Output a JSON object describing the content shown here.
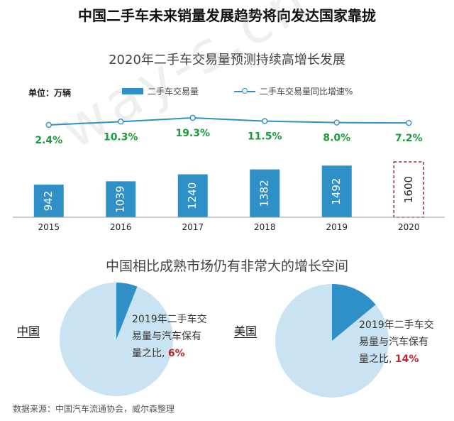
{
  "title": "中国二手车未来销量发展趋势将向发达国家靠拢",
  "watermark": "way-s.cn",
  "chart_data": [
    {
      "type": "bar",
      "title": "2020年二手车交易量预测持续高增长发展",
      "unit_label": "单位：万辆",
      "categories": [
        "2015",
        "2016",
        "2017",
        "2018",
        "2019",
        "2020"
      ],
      "series": [
        {
          "name": "二手车交易量",
          "type": "bar",
          "values": [
            942,
            1039,
            1240,
            1382,
            1492,
            1600
          ],
          "labels": [
            "942",
            "1039",
            "1240",
            "1382",
            "1492",
            "1600"
          ],
          "forecast_index": 5
        },
        {
          "name": "二手车交易量同比增速%",
          "type": "line",
          "values": [
            2.4,
            10.3,
            19.3,
            11.5,
            8.0,
            7.2
          ],
          "labels": [
            "2.4%",
            "10.3%",
            "19.3%",
            "11.5%",
            "8.0%",
            "7.2%"
          ]
        }
      ],
      "colors": {
        "bar": "#2f8fc7",
        "line": "#2f8fc7",
        "growth_label": "#1a9c3c",
        "forecast_border": "#a52a2a"
      }
    },
    {
      "type": "pie",
      "title": "中国相比成熟市场仍有非常大的增长空间",
      "pies": [
        {
          "label": "中国",
          "desc_lines": [
            "2019年二手车交",
            "易量与汽车保有",
            "量之比, "
          ],
          "pct_label": "6%",
          "value": 6
        },
        {
          "label": "美国",
          "desc_lines": [
            "2019年二手车交",
            "易量与汽车保有",
            "量之比, "
          ],
          "pct_label": "14%",
          "value": 14
        }
      ],
      "colors": {
        "slice": "#2f8fc7",
        "rest": "#c9e3f2",
        "pct": "#c0272d"
      }
    }
  ],
  "source": "数据来源：中国汽车流通协会，威尔森整理"
}
